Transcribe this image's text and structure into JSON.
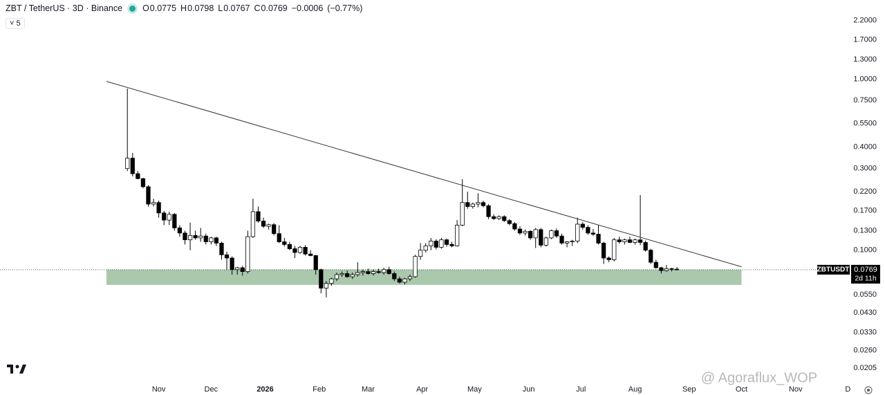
{
  "chart_data": {
    "type": "candlestick",
    "title": "ZBT / TetherUS · 3D · Binance",
    "ohlc_labels": [
      "O",
      "H",
      "L",
      "C"
    ],
    "change": {
      "value": -0.0006,
      "label": "−0.0006"
    },
    "change_percent": {
      "value": -0.77,
      "label": "(−0.77%)"
    },
    "indicator_count": 5,
    "symbol": "ZBTUSDT",
    "countdown": "2d 11h",
    "watermark": "@ Agoraflux_WOP",
    "log_scale": true,
    "x": [
      13,
      16,
      19,
      22,
      25,
      28,
      31,
      34,
      37,
      40,
      43,
      46,
      49,
      52,
      55,
      58,
      61,
      64,
      67,
      70,
      73,
      76,
      79,
      82,
      85,
      88,
      91,
      94,
      97,
      100,
      103,
      106,
      109,
      112,
      115,
      118,
      121,
      124,
      127,
      130,
      133,
      136,
      139,
      142,
      145,
      148,
      151,
      154,
      157,
      160,
      163,
      166,
      169,
      172,
      175,
      178,
      181,
      184,
      187,
      190,
      193,
      196,
      199,
      202,
      205,
      208,
      211,
      214,
      217,
      220,
      223,
      226,
      229,
      232,
      235,
      238,
      241,
      244,
      247,
      250,
      253,
      256,
      259,
      262,
      265,
      268,
      271,
      274,
      277,
      280,
      283,
      286,
      289,
      292,
      295,
      298,
      301,
      304,
      307,
      310,
      313,
      316,
      319,
      322,
      325,
      328
    ],
    "open": [
      0.3,
      0.345,
      0.28,
      0.262,
      0.235,
      0.186,
      0.19,
      0.165,
      0.15,
      0.162,
      0.135,
      0.126,
      0.115,
      0.122,
      0.118,
      0.121,
      0.112,
      0.118,
      0.11,
      0.094,
      0.09,
      0.077,
      0.079,
      0.075,
      0.12,
      0.168,
      0.148,
      0.138,
      0.141,
      0.125,
      0.112,
      0.108,
      0.102,
      0.097,
      0.104,
      0.095,
      0.093,
      0.077,
      0.06,
      0.064,
      0.068,
      0.072,
      0.073,
      0.07,
      0.072,
      0.074,
      0.075,
      0.073,
      0.075,
      0.074,
      0.077,
      0.073,
      0.068,
      0.065,
      0.068,
      0.07,
      0.092,
      0.1,
      0.106,
      0.113,
      0.104,
      0.115,
      0.108,
      0.106,
      0.14,
      0.19,
      0.18,
      0.186,
      0.19,
      0.182,
      0.157,
      0.153,
      0.157,
      0.149,
      0.143,
      0.133,
      0.126,
      0.129,
      0.118,
      0.132,
      0.107,
      0.118,
      0.13,
      0.121,
      0.11,
      0.112,
      0.113,
      0.142,
      0.136,
      0.126,
      0.124,
      0.11,
      0.09,
      0.088,
      0.115,
      0.112,
      0.115,
      0.111,
      0.115,
      0.111,
      0.1,
      0.085,
      0.079,
      0.076,
      0.078,
      0.0775
    ],
    "high": [
      0.88,
      0.37,
      0.29,
      0.265,
      0.24,
      0.2,
      0.195,
      0.17,
      0.168,
      0.165,
      0.14,
      0.13,
      0.145,
      0.13,
      0.135,
      0.125,
      0.12,
      0.12,
      0.112,
      0.098,
      0.092,
      0.08,
      0.081,
      0.13,
      0.2,
      0.18,
      0.155,
      0.143,
      0.144,
      0.14,
      0.118,
      0.112,
      0.106,
      0.106,
      0.107,
      0.1,
      0.094,
      0.078,
      0.066,
      0.069,
      0.074,
      0.075,
      0.076,
      0.074,
      0.085,
      0.077,
      0.078,
      0.077,
      0.078,
      0.079,
      0.08,
      0.075,
      0.07,
      0.069,
      0.072,
      0.094,
      0.11,
      0.11,
      0.118,
      0.116,
      0.118,
      0.117,
      0.112,
      0.15,
      0.26,
      0.22,
      0.19,
      0.215,
      0.195,
      0.186,
      0.162,
      0.16,
      0.16,
      0.152,
      0.146,
      0.138,
      0.132,
      0.131,
      0.135,
      0.135,
      0.12,
      0.132,
      0.134,
      0.125,
      0.113,
      0.115,
      0.155,
      0.146,
      0.14,
      0.133,
      0.14,
      0.112,
      0.092,
      0.118,
      0.12,
      0.117,
      0.12,
      0.117,
      0.21,
      0.114,
      0.102,
      0.088,
      0.08,
      0.082,
      0.079,
      0.0798
    ],
    "low": [
      0.29,
      0.27,
      0.26,
      0.23,
      0.18,
      0.18,
      0.155,
      0.14,
      0.14,
      0.13,
      0.12,
      0.108,
      0.1,
      0.115,
      0.112,
      0.108,
      0.108,
      0.106,
      0.088,
      0.077,
      0.072,
      0.072,
      0.071,
      0.073,
      0.118,
      0.145,
      0.135,
      0.132,
      0.122,
      0.11,
      0.105,
      0.1,
      0.09,
      0.095,
      0.093,
      0.092,
      0.072,
      0.056,
      0.053,
      0.062,
      0.066,
      0.07,
      0.069,
      0.068,
      0.07,
      0.071,
      0.072,
      0.071,
      0.073,
      0.072,
      0.072,
      0.066,
      0.064,
      0.063,
      0.066,
      0.069,
      0.088,
      0.097,
      0.1,
      0.101,
      0.102,
      0.105,
      0.104,
      0.105,
      0.138,
      0.175,
      0.175,
      0.178,
      0.178,
      0.152,
      0.15,
      0.15,
      0.146,
      0.14,
      0.13,
      0.123,
      0.122,
      0.115,
      0.103,
      0.104,
      0.105,
      0.116,
      0.118,
      0.108,
      0.104,
      0.106,
      0.11,
      0.132,
      0.123,
      0.121,
      0.108,
      0.083,
      0.085,
      0.086,
      0.109,
      0.108,
      0.11,
      0.108,
      0.107,
      0.098,
      0.083,
      0.078,
      0.073,
      0.075,
      0.0752,
      0.0767
    ],
    "close": [
      0.345,
      0.28,
      0.262,
      0.235,
      0.186,
      0.19,
      0.165,
      0.15,
      0.162,
      0.135,
      0.126,
      0.115,
      0.122,
      0.118,
      0.121,
      0.112,
      0.118,
      0.11,
      0.094,
      0.09,
      0.077,
      0.079,
      0.075,
      0.12,
      0.168,
      0.148,
      0.138,
      0.141,
      0.125,
      0.112,
      0.108,
      0.102,
      0.097,
      0.104,
      0.095,
      0.093,
      0.077,
      0.06,
      0.064,
      0.068,
      0.072,
      0.073,
      0.07,
      0.072,
      0.074,
      0.075,
      0.073,
      0.075,
      0.074,
      0.077,
      0.073,
      0.068,
      0.065,
      0.068,
      0.07,
      0.092,
      0.1,
      0.106,
      0.113,
      0.104,
      0.115,
      0.108,
      0.106,
      0.14,
      0.19,
      0.18,
      0.186,
      0.19,
      0.182,
      0.157,
      0.153,
      0.157,
      0.149,
      0.143,
      0.133,
      0.126,
      0.129,
      0.118,
      0.132,
      0.107,
      0.118,
      0.13,
      0.121,
      0.11,
      0.112,
      0.113,
      0.142,
      0.136,
      0.126,
      0.124,
      0.11,
      0.09,
      0.088,
      0.115,
      0.112,
      0.115,
      0.111,
      0.115,
      0.111,
      0.1,
      0.085,
      0.079,
      0.076,
      0.078,
      0.0775,
      0.0769
    ],
    "up_color": "#ffffff",
    "down_color": "#000000",
    "trendline": {
      "x": [
        1,
        365
      ],
      "y": [
        0.97,
        0.08
      ],
      "color": "#333333"
    },
    "zone": {
      "x": [
        1,
        365
      ],
      "y": [
        0.0627,
        0.077
      ],
      "color": "#a9c8ac"
    },
    "xlim": [
      -60,
      431
    ],
    "ylim": [
      0.017,
      2.9
    ],
    "xticks": [
      {
        "value": 31,
        "label": "Nov"
      },
      {
        "value": 61,
        "label": "Dec"
      },
      {
        "value": 92,
        "label": "2026"
      },
      {
        "value": 123,
        "label": "Feb"
      },
      {
        "value": 151,
        "label": "Mar"
      },
      {
        "value": 182,
        "label": "Apr"
      },
      {
        "value": 212,
        "label": "May"
      },
      {
        "value": 243,
        "label": "Jun"
      },
      {
        "value": 273,
        "label": "Jul"
      },
      {
        "value": 304,
        "label": "Aug"
      },
      {
        "value": 335,
        "label": "Sep"
      },
      {
        "value": 365,
        "label": "Oct"
      },
      {
        "value": 396,
        "label": "Nov"
      },
      {
        "value": 426,
        "label": "D"
      }
    ],
    "yticks": [
      {
        "value": 2.2,
        "label": "2.2000"
      },
      {
        "value": 1.7,
        "label": "1.7000"
      },
      {
        "value": 1.3,
        "label": "1.3000"
      },
      {
        "value": 1.0,
        "label": "1.0000"
      },
      {
        "value": 0.75,
        "label": "0.7500"
      },
      {
        "value": 0.55,
        "label": "0.5500"
      },
      {
        "value": 0.4,
        "label": "0.4000"
      },
      {
        "value": 0.3,
        "label": "0.3000"
      },
      {
        "value": 0.22,
        "label": "0.2200"
      },
      {
        "value": 0.17,
        "label": "0.1700"
      },
      {
        "value": 0.13,
        "label": "0.1300"
      },
      {
        "value": 0.1,
        "label": "0.1000"
      },
      {
        "value": 0.055,
        "label": "0.0550"
      },
      {
        "value": 0.043,
        "label": "0.0430"
      },
      {
        "value": 0.033,
        "label": "0.0330"
      },
      {
        "value": 0.026,
        "label": "0.0260"
      },
      {
        "value": 0.0205,
        "label": "0.0205"
      }
    ]
  }
}
